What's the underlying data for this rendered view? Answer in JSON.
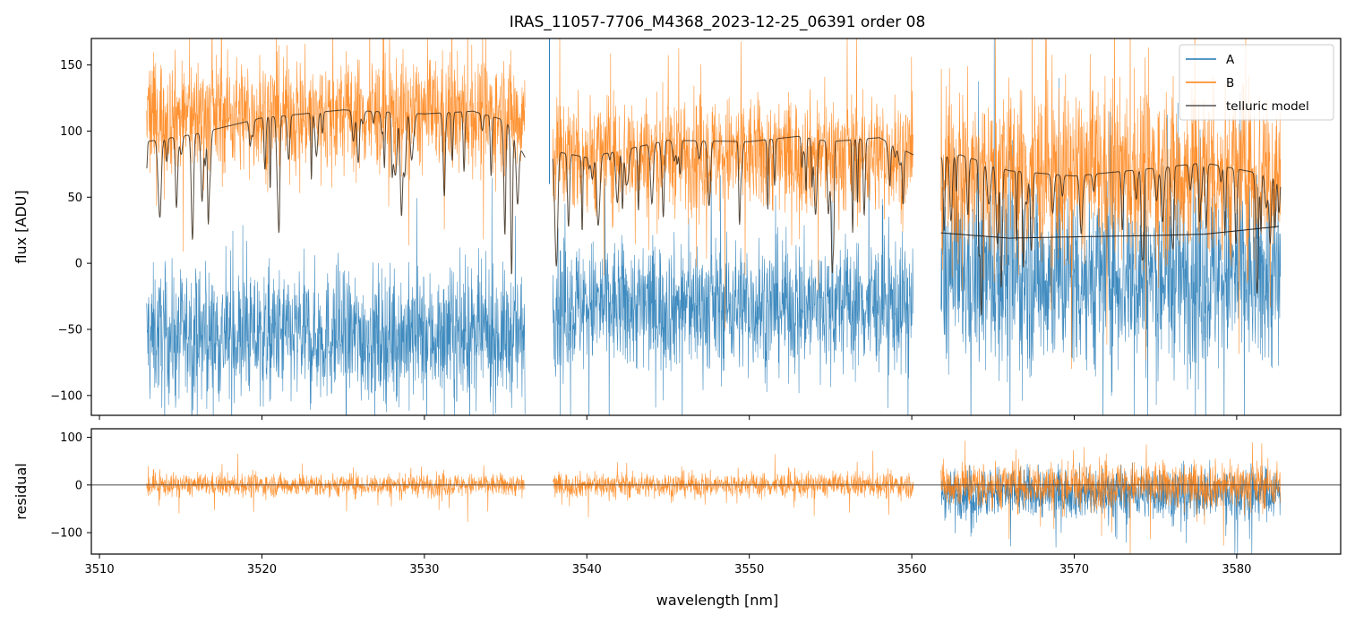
{
  "chart_data": [
    {
      "panel": "main",
      "type": "line",
      "title": "IRAS_11057-7706_M4368_2023-12-25_06391  order 08",
      "xlabel": "",
      "ylabel": "flux [ADU]",
      "xlim": [
        3509.5,
        3586.4
      ],
      "ylim": [
        -115,
        170
      ],
      "xticks": [
        3510,
        3520,
        3530,
        3540,
        3550,
        3560,
        3570,
        3580
      ],
      "xtick_labels_visible": false,
      "yticks": [
        -100,
        -50,
        0,
        50,
        100,
        150
      ],
      "ytick_labels": [
        "−100",
        "−50",
        "0",
        "50",
        "100",
        "150"
      ],
      "grid": false,
      "legend_position": "top-right",
      "legend": [
        "A",
        "B",
        "telluric model"
      ],
      "segments": [
        {
          "x0": 3512.9,
          "x1": 3536.2
        },
        {
          "x0": 3537.9,
          "x1": 3560.1
        },
        {
          "x0": 3561.8,
          "x1": 3582.7
        }
      ],
      "series": [
        {
          "name": "A",
          "color": "#1f77b4",
          "description_segments": [
            {
              "x0": 3512.9,
              "x1": 3536.2,
              "level": -55,
              "noise": 45
            },
            {
              "x0": 3537.9,
              "x1": 3560.1,
              "level": -32,
              "noise": 45
            },
            {
              "x0": 3561.8,
              "x1": 3582.7,
              "level": -10,
              "noise": 65
            }
          ]
        },
        {
          "name": "B",
          "color": "#ff7f0e",
          "description_segments": [
            {
              "x0": 3512.9,
              "x1": 3536.2,
              "level": 112,
              "noise": 40
            },
            {
              "x0": 3537.9,
              "x1": 3560.1,
              "level": 82,
              "noise": 40
            },
            {
              "x0": 3561.8,
              "x1": 3582.7,
              "level": 68,
              "noise": 60
            }
          ]
        },
        {
          "name": "telluric model",
          "color": "#000000",
          "continuum": [
            {
              "x": [
                3512.9,
                3516,
                3520,
                3525,
                3530,
                3533,
                3535,
                3536.2
              ],
              "y": [
                92,
                98,
                110,
                116,
                113,
                115,
                108,
                80
              ]
            },
            {
              "x": [
                3537.9,
                3540,
                3545,
                3550,
                3553,
                3555,
                3558,
                3560.1
              ],
              "y": [
                85,
                80,
                93,
                92,
                96,
                92,
                95,
                82
              ]
            },
            {
              "x": [
                3561.8,
                3563,
                3566,
                3570,
                3575,
                3578,
                3582.7
              ],
              "y": [
                80,
                82,
                70,
                66,
                72,
                76,
                65
              ]
            }
          ],
          "baseline": {
            "x": [
              3561.8,
              3566,
              3570,
              3575,
              3578,
              3582.7
            ],
            "y": [
              23,
              19,
              20,
              21,
              22,
              28
            ]
          }
        }
      ]
    },
    {
      "panel": "residual",
      "type": "line",
      "xlabel": "wavelength [nm]",
      "ylabel": "residual",
      "xlim": [
        3509.5,
        3586.4
      ],
      "ylim": [
        -145,
        118
      ],
      "xticks": [
        3510,
        3520,
        3530,
        3540,
        3550,
        3560,
        3570,
        3580
      ],
      "xtick_labels": [
        "3510",
        "3520",
        "3530",
        "3540",
        "3550",
        "3560",
        "3570",
        "3580"
      ],
      "yticks": [
        -100,
        0,
        100
      ],
      "ytick_labels": [
        "−100",
        "0",
        "100"
      ],
      "zero_line": 0,
      "series": [
        {
          "name": "A",
          "color": "#1f77b4",
          "x0": 3561.8,
          "x1": 3582.7,
          "noise": 55
        },
        {
          "name": "B",
          "color": "#ff7f0e",
          "segments": [
            [
              3512.9,
              3536.2,
              22
            ],
            [
              3537.9,
              3560.1,
              24
            ],
            [
              3561.8,
              3582.7,
              45
            ]
          ]
        }
      ]
    }
  ]
}
